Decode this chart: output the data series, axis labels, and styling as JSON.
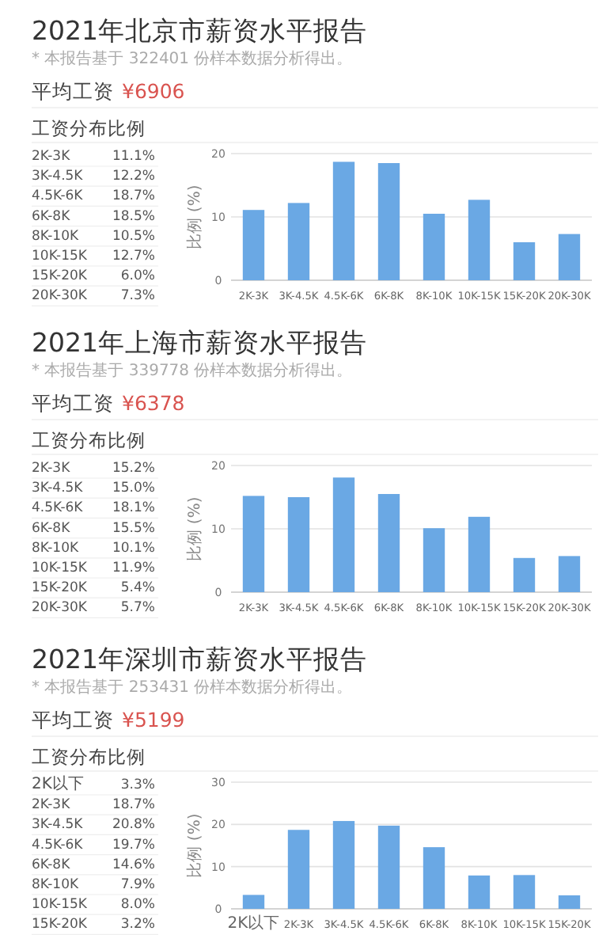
{
  "chart_data": [
    {
      "type": "bar",
      "title": "2021年北京市薪资水平报告",
      "subtitle": "* 本报告基于 322401 份样本数据分析得出。",
      "annotations": [
        "平均工资",
        "¥6906",
        "工资分布比例"
      ],
      "ylabel": "比例 (%)",
      "color": "#6aa8e4",
      "grid": "y",
      "categories": [
        "2K-3K",
        "3K-4.5K",
        "4.5K-6K",
        "6K-8K",
        "8K-10K",
        "10K-15K",
        "15K-20K",
        "20K-30K"
      ],
      "values": [
        11.1,
        12.2,
        18.7,
        18.5,
        10.5,
        12.7,
        6.0,
        7.3
      ],
      "ylim": [
        0,
        20
      ],
      "yticks": [
        0,
        10,
        20
      ]
    },
    {
      "type": "other",
      "annotations": [
        "2K-3K",
        "11.1%",
        "3K-4.5K",
        "12.2%",
        "4.5K-6K",
        "18.7%",
        "6K-8K",
        "18.5%",
        "8K-10K",
        "10.5%",
        "10K-15K",
        "12.7%",
        "15K-20K",
        "6.0%",
        "20K-30K",
        "7.3%"
      ]
    },
    {
      "type": "bar",
      "title": "2021年上海市薪资水平报告",
      "subtitle": "* 本报告基于 339778 份样本数据分析得出。",
      "annotations": [
        "平均工资",
        "¥6378",
        "工资分布比例"
      ],
      "ylabel": "比例 (%)",
      "color": "#6aa8e4",
      "grid": "y",
      "categories": [
        "2K-3K",
        "3K-4.5K",
        "4.5K-6K",
        "6K-8K",
        "8K-10K",
        "10K-15K",
        "15K-20K",
        "20K-30K"
      ],
      "values": [
        15.2,
        15.0,
        18.1,
        15.5,
        10.1,
        11.9,
        5.4,
        5.7
      ],
      "ylim": [
        0,
        20
      ],
      "yticks": [
        0,
        10,
        20
      ]
    },
    {
      "type": "other",
      "annotations": [
        "2K-3K",
        "15.2%",
        "3K-4.5K",
        "15.0%",
        "4.5K-6K",
        "18.1%",
        "6K-8K",
        "15.5%",
        "8K-10K",
        "10.1%",
        "10K-15K",
        "11.9%",
        "15K-20K",
        "5.4%",
        "20K-30K",
        "5.7%"
      ]
    },
    {
      "type": "bar",
      "title": "2021年深圳市薪资水平报告",
      "subtitle": "* 本报告基于 253431 份样本数据分析得出。",
      "annotations": [
        "平均工资",
        "¥5199",
        "工资分布比例"
      ],
      "ylabel": "比例 (%)",
      "color": "#6aa8e4",
      "grid": "y",
      "categories": [
        "2K以下",
        "2K-3K",
        "3K-4.5K",
        "4.5K-6K",
        "6K-8K",
        "8K-10K",
        "10K-15K",
        "15K-20K"
      ],
      "values": [
        3.3,
        18.7,
        20.8,
        19.7,
        14.6,
        7.9,
        8.0,
        3.2
      ],
      "ylim": [
        0,
        30
      ],
      "yticks": [
        0,
        10,
        20,
        30
      ]
    },
    {
      "type": "other",
      "annotations": [
        "2K以下",
        "3.3%",
        "2K-3K",
        "18.7%",
        "3K-4.5K",
        "20.8%",
        "4.5K-6K",
        "19.7%",
        "6K-8K",
        "14.6%",
        "8K-10K",
        "7.9%",
        "10K-15K",
        "8.0%",
        "15K-20K",
        "3.2%"
      ]
    }
  ]
}
